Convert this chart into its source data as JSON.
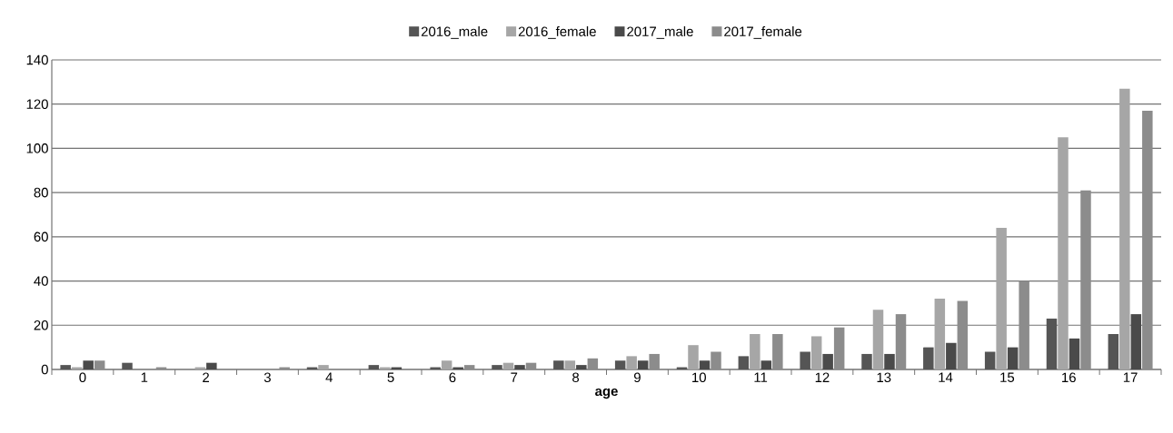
{
  "chart_data": {
    "type": "bar",
    "xlabel": "age",
    "categories": [
      "0",
      "1",
      "2",
      "3",
      "4",
      "5",
      "6",
      "7",
      "8",
      "9",
      "10",
      "11",
      "12",
      "13",
      "14",
      "15",
      "16",
      "17"
    ],
    "series": [
      {
        "name": "2016_male",
        "color": "#555555",
        "values": [
          2,
          3,
          0,
          0,
          1,
          2,
          1,
          2,
          4,
          4,
          1,
          6,
          8,
          7,
          10,
          8,
          23,
          16
        ]
      },
      {
        "name": "2016_female",
        "color": "#a6a6a6",
        "values": [
          1,
          0,
          1,
          0,
          2,
          1,
          4,
          3,
          4,
          6,
          11,
          16,
          15,
          27,
          32,
          64,
          105,
          127
        ]
      },
      {
        "name": "2017_male",
        "color": "#4a4a4a",
        "values": [
          4,
          0,
          3,
          0,
          0,
          1,
          1,
          2,
          2,
          4,
          4,
          4,
          7,
          7,
          12,
          10,
          14,
          25
        ]
      },
      {
        "name": "2017_female",
        "color": "#8c8c8c",
        "values": [
          4,
          1,
          0,
          1,
          0,
          0,
          2,
          3,
          5,
          7,
          8,
          16,
          19,
          25,
          31,
          40,
          81,
          117
        ]
      }
    ],
    "ylim": [
      0,
      140
    ],
    "yticks": [
      0,
      20,
      40,
      60,
      80,
      100,
      120,
      140
    ],
    "grid": "y",
    "legend": "top"
  }
}
